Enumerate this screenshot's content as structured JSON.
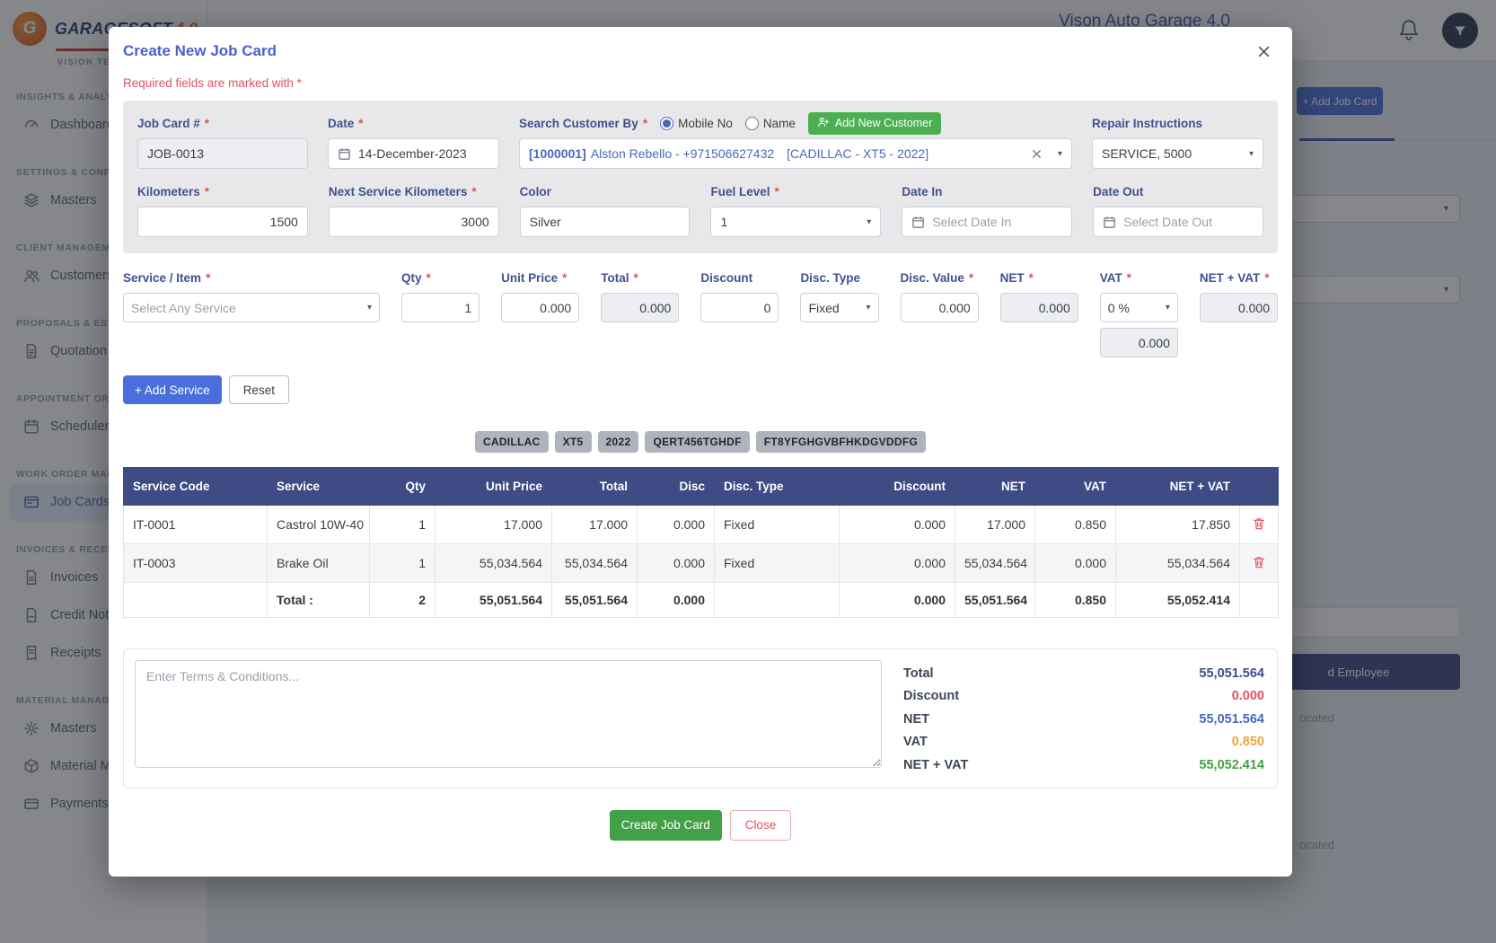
{
  "app": {
    "logo": {
      "mark": "G",
      "name": "GARAGESOFT",
      "version": "4.0",
      "subtitle": "VISION TECH"
    },
    "topbar": {
      "title": "Vison Auto Garage 4.0"
    },
    "background": {
      "add_job_card_label": "+ Add Job Card",
      "employee_button_label": "d Employee",
      "fragment_1": "ocated",
      "fragment_2": "ocated"
    }
  },
  "sidebar": {
    "sections": [
      {
        "header": "INSIGHTS & ANALYTI",
        "items": [
          {
            "label": "Dashboard",
            "icon": "gauge-icon",
            "active": false
          }
        ]
      },
      {
        "header": "SETTINGS & CONFIG",
        "items": [
          {
            "label": "Masters",
            "icon": "layers-icon",
            "active": false
          }
        ]
      },
      {
        "header": "CLIENT MANAGEMEN",
        "items": [
          {
            "label": "Customers",
            "icon": "users-icon",
            "active": false
          }
        ]
      },
      {
        "header": "PROPOSALS & ESTIM",
        "items": [
          {
            "label": "Quotation",
            "icon": "quote-icon",
            "active": false
          }
        ]
      },
      {
        "header": "APPOINTMENT ORGA",
        "items": [
          {
            "label": "Scheduler",
            "icon": "calendar-icon",
            "active": false
          }
        ]
      },
      {
        "header": "WORK ORDER MANA",
        "items": [
          {
            "label": "Job Cards",
            "icon": "job-card-icon",
            "active": true
          }
        ]
      },
      {
        "header": "INVOICES & RECEIPT",
        "items": [
          {
            "label": "Invoices",
            "icon": "invoice-icon",
            "active": false
          },
          {
            "label": "Credit Not",
            "icon": "credit-note-icon",
            "active": false
          },
          {
            "label": "Receipts",
            "icon": "receipt-icon",
            "active": false
          }
        ]
      },
      {
        "header": "MATERIAL MANAGEM",
        "items": [
          {
            "label": "Masters",
            "icon": "gear-icon",
            "active": false
          },
          {
            "label": "Material M",
            "icon": "box-icon",
            "active": false
          },
          {
            "label": "Payments",
            "icon": "payment-icon",
            "active": false
          }
        ]
      }
    ]
  },
  "modal": {
    "title": "Create New Job Card",
    "required_note": "Required fields are marked with *",
    "required_marker": "*",
    "form": {
      "job_card": {
        "label": "Job Card #",
        "value": "JOB-0013"
      },
      "date": {
        "label": "Date",
        "value": "14-December-2023"
      },
      "search_customer": {
        "label": "Search Customer By",
        "radio_mobile": "Mobile No",
        "radio_name": "Name",
        "selected": "Mobile No",
        "add_button": "Add New Customer"
      },
      "customer": {
        "id": "[1000001]",
        "name": "Alston Rebello - +971506627432",
        "vehicle": "[CADILLAC - XT5 - 2022]"
      },
      "repair_instructions": {
        "label": "Repair Instructions",
        "value": "SERVICE, 5000"
      },
      "kilometers": {
        "label": "Kilometers",
        "value": "1500"
      },
      "next_service_km": {
        "label": "Next Service Kilometers",
        "value": "3000"
      },
      "color": {
        "label": "Color",
        "value": "Silver"
      },
      "fuel_level": {
        "label": "Fuel Level",
        "value": "1"
      },
      "date_in": {
        "label": "Date In",
        "placeholder": "Select Date In"
      },
      "date_out": {
        "label": "Date Out",
        "placeholder": "Select Date Out"
      }
    },
    "service_entry": {
      "service": {
        "label": "Service / Item",
        "value": "Select Any Service"
      },
      "qty": {
        "label": "Qty",
        "value": "1"
      },
      "unit_price": {
        "label": "Unit Price",
        "value": "0.000"
      },
      "total": {
        "label": "Total",
        "value": "0.000"
      },
      "discount": {
        "label": "Discount",
        "value": "0"
      },
      "disc_type": {
        "label": "Disc. Type",
        "value": "Fixed"
      },
      "disc_value": {
        "label": "Disc. Value",
        "value": "0.000"
      },
      "net": {
        "label": "NET",
        "value": "0.000"
      },
      "vat": {
        "label": "VAT",
        "value": "0 %",
        "amount": "0.000"
      },
      "net_vat": {
        "label": "NET + VAT",
        "value": "0.000"
      },
      "add_service_label": "+ Add Service",
      "reset_label": "Reset"
    },
    "vehicle_tags": [
      "CADILLAC",
      "XT5",
      "2022",
      "QERT456TGHDF",
      "FT8YFGHGVBFHKDGVDDFG"
    ],
    "table": {
      "headers": [
        "Service Code",
        "Service",
        "Qty",
        "Unit Price",
        "Total",
        "Disc",
        "Disc. Type",
        "Discount",
        "NET",
        "VAT",
        "NET + VAT",
        ""
      ],
      "rows": [
        [
          "IT-0001",
          "Castrol 10W-40",
          "1",
          "17.000",
          "17.000",
          "0.000",
          "Fixed",
          "0.000",
          "17.000",
          "0.850",
          "17.850"
        ],
        [
          "IT-0003",
          "Brake Oil",
          "1",
          "55,034.564",
          "55,034.564",
          "0.000",
          "Fixed",
          "0.000",
          "55,034.564",
          "0.000",
          "55,034.564"
        ]
      ],
      "total_row": [
        "",
        "Total :",
        "2",
        "55,051.564",
        "55,051.564",
        "0.000",
        "",
        "0.000",
        "55,051.564",
        "0.850",
        "55,052.414",
        ""
      ]
    },
    "terms_placeholder": "Enter Terms & Conditions...",
    "summary": [
      {
        "label": "Total",
        "value": "55,051.564",
        "color": "#3f4d8a"
      },
      {
        "label": "Discount",
        "value": "0.000",
        "color": "#e05260"
      },
      {
        "label": "NET",
        "value": "55,051.564",
        "color": "#4a69bd"
      },
      {
        "label": "VAT",
        "value": "0.850",
        "color": "#f0a13c"
      },
      {
        "label": "NET + VAT",
        "value": "55,052.414",
        "color": "#43a047"
      }
    ],
    "footer": {
      "create_label": "Create Job Card",
      "close_label": "Close"
    }
  }
}
